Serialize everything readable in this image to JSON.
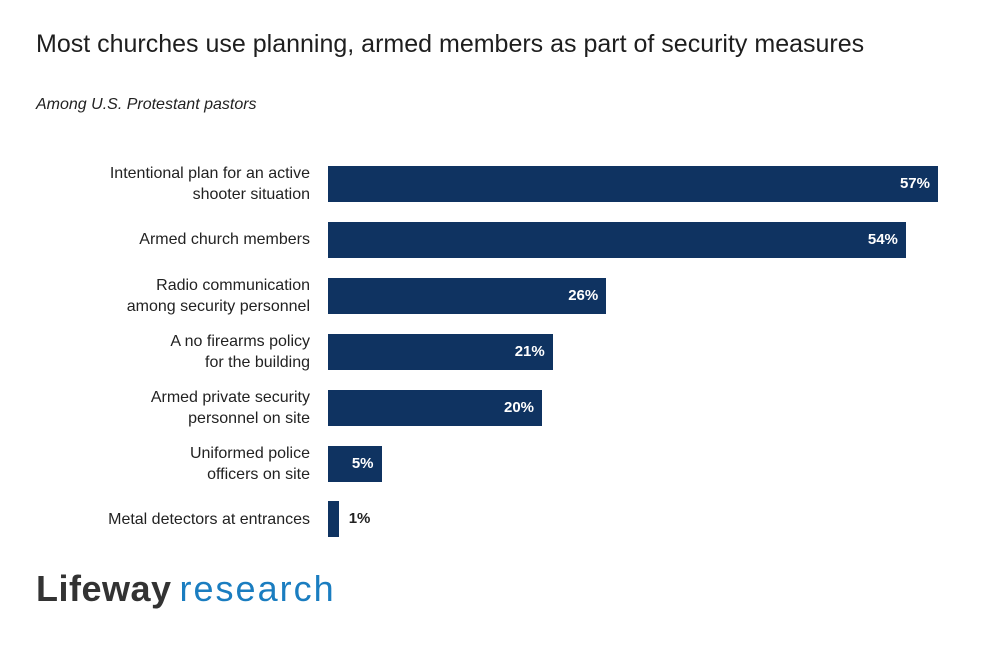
{
  "chart_data": {
    "type": "bar",
    "orientation": "horizontal",
    "title": "Most churches use planning, armed members as part of security measures",
    "subtitle": "Among U.S. Protestant pastors",
    "categories": [
      "Intentional plan for an active\nshooter situation",
      "Armed church members",
      "Radio communication\namong security personnel",
      "A no firearms policy\nfor the building",
      "Armed private security\npersonnel on site",
      "Uniformed police\nofficers on site",
      "Metal detectors at entrances"
    ],
    "values": [
      57,
      54,
      26,
      21,
      20,
      5,
      1
    ],
    "value_labels": [
      "57%",
      "54%",
      "26%",
      "21%",
      "20%",
      "5%",
      "1%"
    ],
    "grid": false,
    "bar_color": "#0f3361"
  },
  "logo": {
    "part1": "Lifeway",
    "part2": "research"
  }
}
